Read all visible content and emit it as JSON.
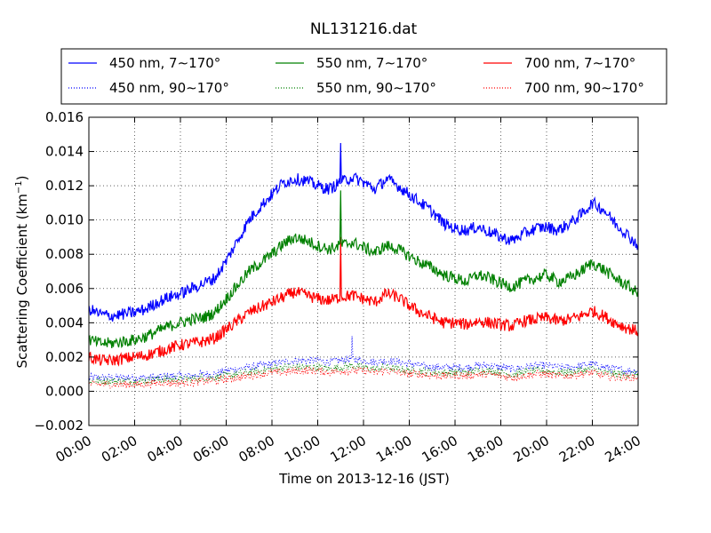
{
  "chart_data": {
    "type": "line",
    "title": "NL131216.dat",
    "xlabel": "Time on 2013-12-16 (JST)",
    "ylabel": "Scattering Coefficient (km",
    "ylabel_exponent": "−1",
    "ylabel_suffix": ")",
    "ylim": [
      -0.002,
      0.016
    ],
    "xlim_hours": [
      0,
      24
    ],
    "x_unit": "hour of day",
    "grid": true,
    "grid_style": "dotted",
    "legend_position": "top",
    "y_ticks": [
      "−0.002",
      "0.000",
      "0.002",
      "0.004",
      "0.006",
      "0.008",
      "0.010",
      "0.012",
      "0.014",
      "0.016"
    ],
    "x_ticks": [
      "00:00",
      "02:00",
      "04:00",
      "06:00",
      "08:00",
      "10:00",
      "12:00",
      "14:00",
      "16:00",
      "18:00",
      "20:00",
      "22:00",
      "24:00"
    ],
    "x_hours": [
      0,
      0.5,
      1,
      1.5,
      2,
      2.5,
      3,
      3.5,
      4,
      4.5,
      5,
      5.5,
      6,
      6.5,
      7,
      7.5,
      8,
      8.5,
      9,
      9.5,
      10,
      10.5,
      11,
      11.5,
      12,
      12.5,
      13,
      13.5,
      14,
      14.5,
      15,
      15.5,
      16,
      16.5,
      17,
      17.5,
      18,
      18.5,
      19,
      19.5,
      20,
      20.5,
      21,
      21.5,
      22,
      22.5,
      23,
      23.5,
      24
    ],
    "series": [
      {
        "name": "450 nm, 7∼170°",
        "color": "#0000ff",
        "style": "solid",
        "values": [
          0.0048,
          0.0045,
          0.0044,
          0.0045,
          0.0046,
          0.0048,
          0.0052,
          0.0055,
          0.0057,
          0.006,
          0.0063,
          0.0066,
          0.0076,
          0.0088,
          0.01,
          0.0108,
          0.0115,
          0.0122,
          0.0124,
          0.0123,
          0.012,
          0.0118,
          0.0122,
          0.0125,
          0.0122,
          0.0118,
          0.0124,
          0.012,
          0.0115,
          0.011,
          0.0105,
          0.0098,
          0.0095,
          0.0094,
          0.0096,
          0.0093,
          0.009,
          0.0088,
          0.0092,
          0.0095,
          0.0096,
          0.0094,
          0.0098,
          0.0103,
          0.011,
          0.0106,
          0.0098,
          0.0092,
          0.0085
        ],
        "spikes": [
          [
            11,
            0.0147
          ]
        ]
      },
      {
        "name": "550 nm, 7∼170°",
        "color": "#008000",
        "style": "solid",
        "values": [
          0.003,
          0.0028,
          0.0028,
          0.0029,
          0.003,
          0.0032,
          0.0035,
          0.0038,
          0.004,
          0.0042,
          0.0043,
          0.0046,
          0.0054,
          0.0062,
          0.007,
          0.0075,
          0.008,
          0.0086,
          0.009,
          0.0088,
          0.0085,
          0.0083,
          0.0085,
          0.0087,
          0.0084,
          0.0081,
          0.0085,
          0.0083,
          0.0079,
          0.0075,
          0.0072,
          0.0068,
          0.0066,
          0.0064,
          0.0068,
          0.0066,
          0.0063,
          0.0061,
          0.0064,
          0.0066,
          0.0068,
          0.0064,
          0.0066,
          0.007,
          0.0075,
          0.0071,
          0.0066,
          0.0062,
          0.0057
        ],
        "spikes": [
          [
            11,
            0.0118
          ]
        ]
      },
      {
        "name": "700 nm, 7∼170°",
        "color": "#ff0000",
        "style": "solid",
        "values": [
          0.002,
          0.0018,
          0.0018,
          0.0019,
          0.002,
          0.0021,
          0.0023,
          0.0025,
          0.0027,
          0.0028,
          0.0029,
          0.0031,
          0.0036,
          0.0041,
          0.0046,
          0.0049,
          0.0052,
          0.0055,
          0.0058,
          0.0056,
          0.0054,
          0.0053,
          0.0055,
          0.0056,
          0.0054,
          0.0052,
          0.0057,
          0.0055,
          0.005,
          0.0046,
          0.0043,
          0.004,
          0.004,
          0.0039,
          0.0041,
          0.004,
          0.0039,
          0.0038,
          0.0041,
          0.0042,
          0.0043,
          0.0041,
          0.0042,
          0.0044,
          0.0047,
          0.0044,
          0.004,
          0.0037,
          0.0035
        ],
        "spikes": [
          [
            11,
            0.0093
          ]
        ]
      },
      {
        "name": "450 nm, 90∼170°",
        "color": "#0000ff",
        "style": "dotted",
        "values": [
          0.0008,
          0.0008,
          0.0008,
          0.0008,
          0.0008,
          0.0008,
          0.0008,
          0.0009,
          0.0009,
          0.0009,
          0.001,
          0.001,
          0.0012,
          0.0013,
          0.0014,
          0.0015,
          0.0016,
          0.0017,
          0.0018,
          0.0018,
          0.0018,
          0.0017,
          0.0018,
          0.0019,
          0.0018,
          0.0017,
          0.0018,
          0.0017,
          0.0016,
          0.0015,
          0.0014,
          0.0014,
          0.0014,
          0.0014,
          0.0015,
          0.0015,
          0.0014,
          0.0013,
          0.0014,
          0.0015,
          0.0015,
          0.0014,
          0.0014,
          0.0015,
          0.0016,
          0.0014,
          0.0013,
          0.0012,
          0.0012
        ],
        "spikes": [
          [
            11.5,
            0.003
          ]
        ]
      },
      {
        "name": "550 nm, 90∼170°",
        "color": "#008000",
        "style": "dotted",
        "values": [
          0.0006,
          0.0006,
          0.0006,
          0.0006,
          0.0006,
          0.0006,
          0.0007,
          0.0007,
          0.0007,
          0.0007,
          0.0008,
          0.0008,
          0.0009,
          0.001,
          0.0011,
          0.0012,
          0.0013,
          0.0014,
          0.0014,
          0.0014,
          0.0014,
          0.0013,
          0.0014,
          0.0015,
          0.0014,
          0.0013,
          0.0014,
          0.0013,
          0.0012,
          0.0012,
          0.0011,
          0.0011,
          0.0011,
          0.0011,
          0.0012,
          0.0012,
          0.0011,
          0.001,
          0.0011,
          0.0012,
          0.0012,
          0.0011,
          0.0011,
          0.0012,
          0.0013,
          0.0011,
          0.001,
          0.001,
          0.001
        ],
        "spikes": []
      },
      {
        "name": "700 nm, 90∼170°",
        "color": "#ff0000",
        "style": "dotted",
        "values": [
          0.0004,
          0.0004,
          0.0004,
          0.0004,
          0.0004,
          0.0004,
          0.0005,
          0.0005,
          0.0005,
          0.0005,
          0.0006,
          0.0006,
          0.0007,
          0.0008,
          0.0009,
          0.001,
          0.0011,
          0.0011,
          0.0012,
          0.0012,
          0.0012,
          0.0011,
          0.0012,
          0.0012,
          0.0012,
          0.0011,
          0.0012,
          0.0011,
          0.001,
          0.001,
          0.0009,
          0.0009,
          0.0009,
          0.0009,
          0.001,
          0.001,
          0.0009,
          0.0008,
          0.0009,
          0.001,
          0.001,
          0.0009,
          0.0009,
          0.001,
          0.0011,
          0.0009,
          0.0008,
          0.0008,
          0.0008
        ],
        "spikes": []
      }
    ]
  }
}
